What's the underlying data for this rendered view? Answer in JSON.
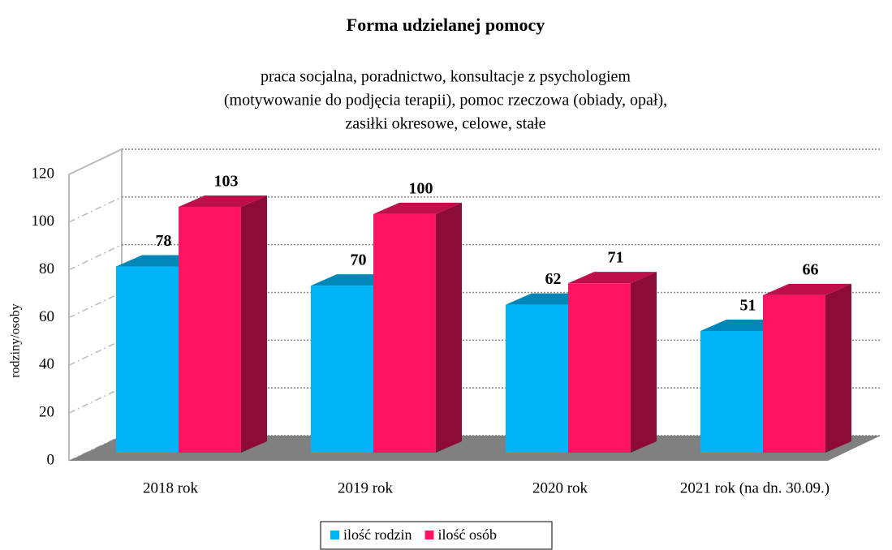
{
  "chart_data": {
    "type": "bar3d",
    "title": "Forma udzielanej pomocy",
    "subtitle": [
      "praca socjalna, poradnictwo, konsultacje z psychologiem",
      "(motywowanie do podjęcia terapii), pomoc rzeczowa (obiady, opał),",
      "zasiłki okresowe, celowe, stałe"
    ],
    "y_label": "rodziny/osoby",
    "categories": [
      "2018 rok",
      "2019 rok",
      "2020 rok",
      "2021 rok (na dn. 30.09.)"
    ],
    "series": [
      {
        "name": "ilość rodzin",
        "color": "#00b4f5",
        "values": [
          78,
          70,
          62,
          51
        ]
      },
      {
        "name": "ilość osób",
        "color": "#ff1464",
        "values": [
          103,
          100,
          71,
          66
        ]
      }
    ],
    "ylim": [
      0,
      120
    ],
    "yticks": [
      0,
      20,
      40,
      60,
      80,
      100,
      120
    ],
    "grid": true,
    "legend": "bottom"
  }
}
